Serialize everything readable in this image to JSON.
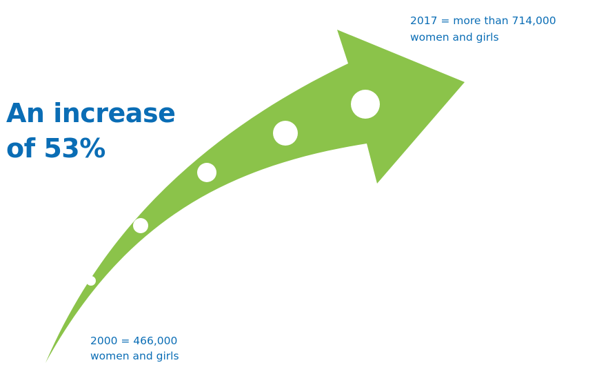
{
  "colors": {
    "arrow": "#8bc34a",
    "dot": "#ffffff",
    "headline": "#0a6db5",
    "label": "#0a6db5",
    "background": "#ffffff"
  },
  "headline": {
    "line1": "An increase",
    "line2": "of 53%"
  },
  "end_label": {
    "line1": "2017 = more than 714,000",
    "line2": "women and girls"
  },
  "start_label": {
    "line1": "2000 = 466,000",
    "line2": "women and girls"
  },
  "icons": {
    "arrow": "curved-growth-arrow-icon",
    "dots": "progress-dot-icon"
  }
}
